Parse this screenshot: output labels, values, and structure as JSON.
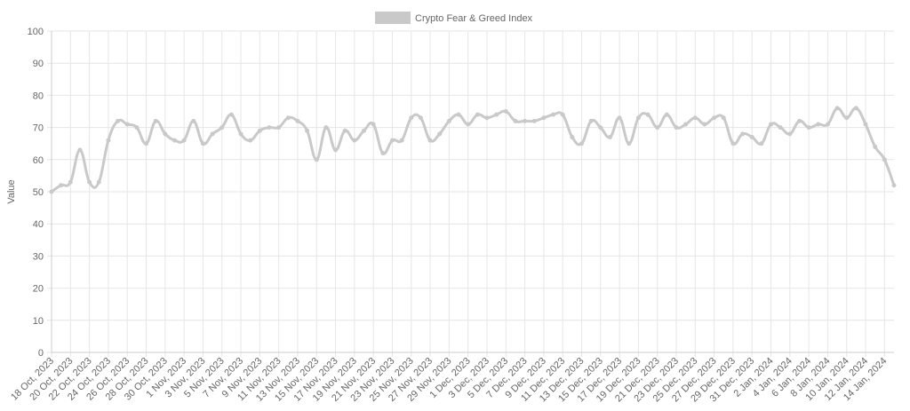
{
  "chart_data": {
    "type": "line",
    "y_label": "Value",
    "categories": [
      "18 Oct, 2023",
      null,
      "20 Oct, 2023",
      null,
      "22 Oct, 2023",
      null,
      "24 Oct, 2023",
      null,
      "26 Oct, 2023",
      null,
      "28 Oct, 2023",
      null,
      "30 Oct, 2023",
      null,
      "1 Nov, 2023",
      null,
      "3 Nov, 2023",
      null,
      "5 Nov, 2023",
      null,
      "7 Nov, 2023",
      null,
      "9 Nov, 2023",
      null,
      "11 Nov, 2023",
      null,
      "13 Nov, 2023",
      null,
      "15 Nov, 2023",
      null,
      "17 Nov, 2023",
      null,
      "19 Nov, 2023",
      null,
      "21 Nov, 2023",
      null,
      "23 Nov, 2023",
      null,
      "25 Nov, 2023",
      null,
      "27 Nov, 2023",
      null,
      "29 Nov, 2023",
      null,
      "1 Dec, 2023",
      null,
      "3 Dec, 2023",
      null,
      "5 Dec, 2023",
      null,
      "7 Dec, 2023",
      null,
      "9 Dec, 2023",
      null,
      "11 Dec, 2023",
      null,
      "13 Dec, 2023",
      null,
      "15 Dec, 2023",
      null,
      "17 Dec, 2023",
      null,
      "19 Dec, 2023",
      null,
      "21 Dec, 2023",
      null,
      "23 Dec, 2023",
      null,
      "25 Dec, 2023",
      null,
      "27 Dec, 2023",
      null,
      "29 Dec, 2023",
      null,
      "31 Dec, 2023",
      null,
      "2 Jan, 2024",
      null,
      "4 Jan, 2024",
      null,
      "6 Jan, 2024",
      null,
      "8 Jan, 2024",
      null,
      "10 Jan, 2024",
      null,
      "12 Jan, 2024",
      null,
      "14 Jan, 2024",
      null
    ],
    "series": [
      {
        "name": "Crypto Fear & Greed Index",
        "color": "#c9c9c9",
        "values": [
          50,
          52,
          53,
          63,
          53,
          53,
          66,
          72,
          71,
          70,
          65,
          72,
          68,
          66,
          66,
          72,
          65,
          68,
          70,
          74,
          68,
          66,
          69,
          70,
          70,
          73,
          72,
          69,
          60,
          70,
          63,
          69,
          66,
          69,
          71,
          62,
          66,
          66,
          73,
          73,
          66,
          68,
          72,
          74,
          71,
          74,
          73,
          74,
          75,
          72,
          72,
          72,
          73,
          74,
          74,
          67,
          65,
          72,
          70,
          67,
          73,
          65,
          73,
          74,
          70,
          74,
          70,
          71,
          73,
          71,
          73,
          73,
          65,
          68,
          67,
          65,
          71,
          70,
          68,
          72,
          70,
          71,
          71,
          76,
          73,
          76,
          71,
          64,
          60,
          52
        ]
      }
    ],
    "ylim": [
      0,
      100
    ],
    "yticks": [
      0,
      10,
      20,
      30,
      40,
      50,
      60,
      70,
      80,
      90,
      100
    ],
    "grid": true,
    "legend": "top"
  }
}
